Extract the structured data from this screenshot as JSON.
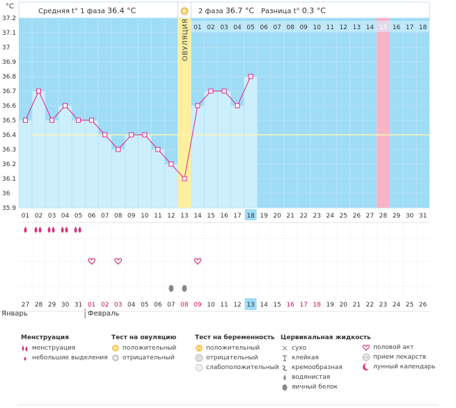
{
  "header": {
    "phase1_label": "Средняя t° 1 фаза",
    "phase1_value": "36.4 °C",
    "phase2_label": "2 фаза",
    "phase2_value": "36.7 °C",
    "diff_label": "Разница t°",
    "diff_value": "0.3 °C"
  },
  "colors": {
    "chart_bg": "#9fdcf5",
    "bar_fill": "#cdeefb",
    "line": "#e0208a",
    "ovulation": "#fff0a0",
    "highlight": "#f9b4c8",
    "today": "#9fdcf5",
    "coverline": "#fff6b0"
  },
  "chart_data": {
    "type": "line",
    "ylabel": "°C",
    "ylim": [
      35.9,
      37.2
    ],
    "yticks": [
      "37.2",
      "37.1",
      "37",
      "36.9",
      "36.8",
      "36.7",
      "36.6",
      "36.5",
      "36.4",
      "36.3",
      "36.2",
      "36.1",
      "36",
      "35.9"
    ],
    "cycle_days": [
      "01",
      "02",
      "03",
      "04",
      "05",
      "06",
      "07",
      "08",
      "09",
      "10",
      "11",
      "12",
      "13",
      "14",
      "15",
      "16",
      "17",
      "18",
      "19",
      "20",
      "21",
      "22",
      "23",
      "24",
      "25",
      "26",
      "27",
      "28",
      "29",
      "30",
      "31"
    ],
    "temperatures": [
      36.5,
      36.7,
      36.5,
      36.6,
      36.5,
      36.5,
      36.4,
      36.3,
      36.4,
      36.4,
      36.3,
      36.2,
      36.1,
      36.6,
      36.7,
      36.7,
      36.6,
      36.8,
      null,
      null,
      null,
      null,
      null,
      null,
      null,
      null,
      null,
      null,
      null,
      null,
      null
    ],
    "coverline": 36.4,
    "ovulation_day_index": 12,
    "ovulation_label": "ОВУЛЯЦИЯ",
    "highlight_day_index": 27,
    "today_index": 17,
    "phase2_day_labels": [
      "01",
      "02",
      "03",
      "04",
      "05",
      "06",
      "07",
      "08",
      "09",
      "10",
      "11",
      "12",
      "13",
      "14",
      "15",
      "16",
      "17",
      "18"
    ],
    "phase2_highlight": "15",
    "dates": [
      "27",
      "28",
      "29",
      "30",
      "31",
      "01",
      "02",
      "03",
      "04",
      "05",
      "06",
      "07",
      "08",
      "09",
      "10",
      "11",
      "12",
      "13",
      "14",
      "15",
      "16",
      "17",
      "18",
      "19",
      "20",
      "21",
      "22",
      "23",
      "24",
      "25",
      "26"
    ],
    "red_date_indices": [
      5,
      6,
      7,
      12,
      13,
      20,
      21,
      22
    ],
    "today_date_index": 17,
    "months": [
      "Январь",
      "Февраль"
    ]
  },
  "symptoms": {
    "menstruation_days": [
      0,
      1,
      2,
      3,
      4
    ],
    "menstruation_count": [
      1,
      2,
      2,
      2,
      2
    ],
    "intercourse_days": [
      5,
      7,
      13
    ],
    "egg_white_days": [
      11,
      12
    ]
  },
  "legend": {
    "menstruation": {
      "title": "Менструация",
      "items": [
        "менструация",
        "небольшие выделения"
      ]
    },
    "ovulation_test": {
      "title": "Тест на овуляцию",
      "items": [
        "положительный",
        "отрицательный"
      ]
    },
    "pregnancy_test": {
      "title": "Тест на беременность",
      "items": [
        "положительный",
        "отрицательный",
        "слабоположительный"
      ]
    },
    "cervical": {
      "title": "Цервикальная жидкость",
      "items": [
        "сухо",
        "клейкая",
        "кремообразная",
        "водянистая",
        "яичный белок"
      ]
    },
    "other": {
      "items": [
        "половой акт",
        "прием лекарств",
        "лунный календарь"
      ]
    }
  }
}
